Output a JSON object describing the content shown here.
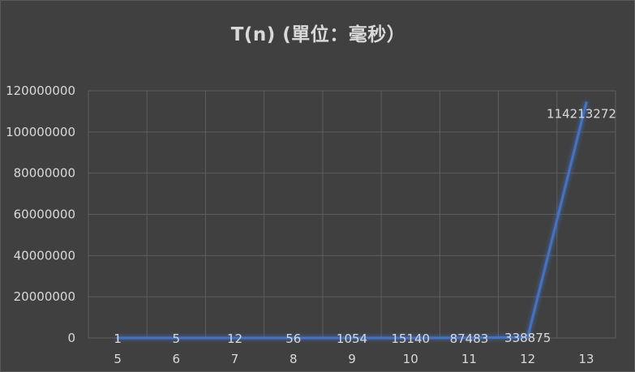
{
  "title": "T(n) (單位：毫秒）",
  "chart_data": {
    "type": "line",
    "title": "T(n) (單位：毫秒）",
    "xlabel": "",
    "ylabel": "",
    "categories": [
      "5",
      "6",
      "7",
      "8",
      "9",
      "10",
      "11",
      "12",
      "13"
    ],
    "series": [
      {
        "values": [
          1,
          5,
          12,
          56,
          1054,
          15140,
          87483,
          338875,
          114213272
        ],
        "color": "#4472c4"
      }
    ],
    "data_labels": [
      "1",
      "5",
      "12",
      "56",
      "1054",
      "15140",
      "87483",
      "338875",
      "114213272"
    ],
    "ylim": [
      0,
      120000000
    ],
    "yticks": [
      0,
      20000000,
      40000000,
      60000000,
      80000000,
      100000000,
      120000000
    ],
    "ytick_labels": [
      "0",
      "20000000",
      "40000000",
      "60000000",
      "80000000",
      "100000000",
      "120000000"
    ],
    "grid": true,
    "legend": "none"
  }
}
